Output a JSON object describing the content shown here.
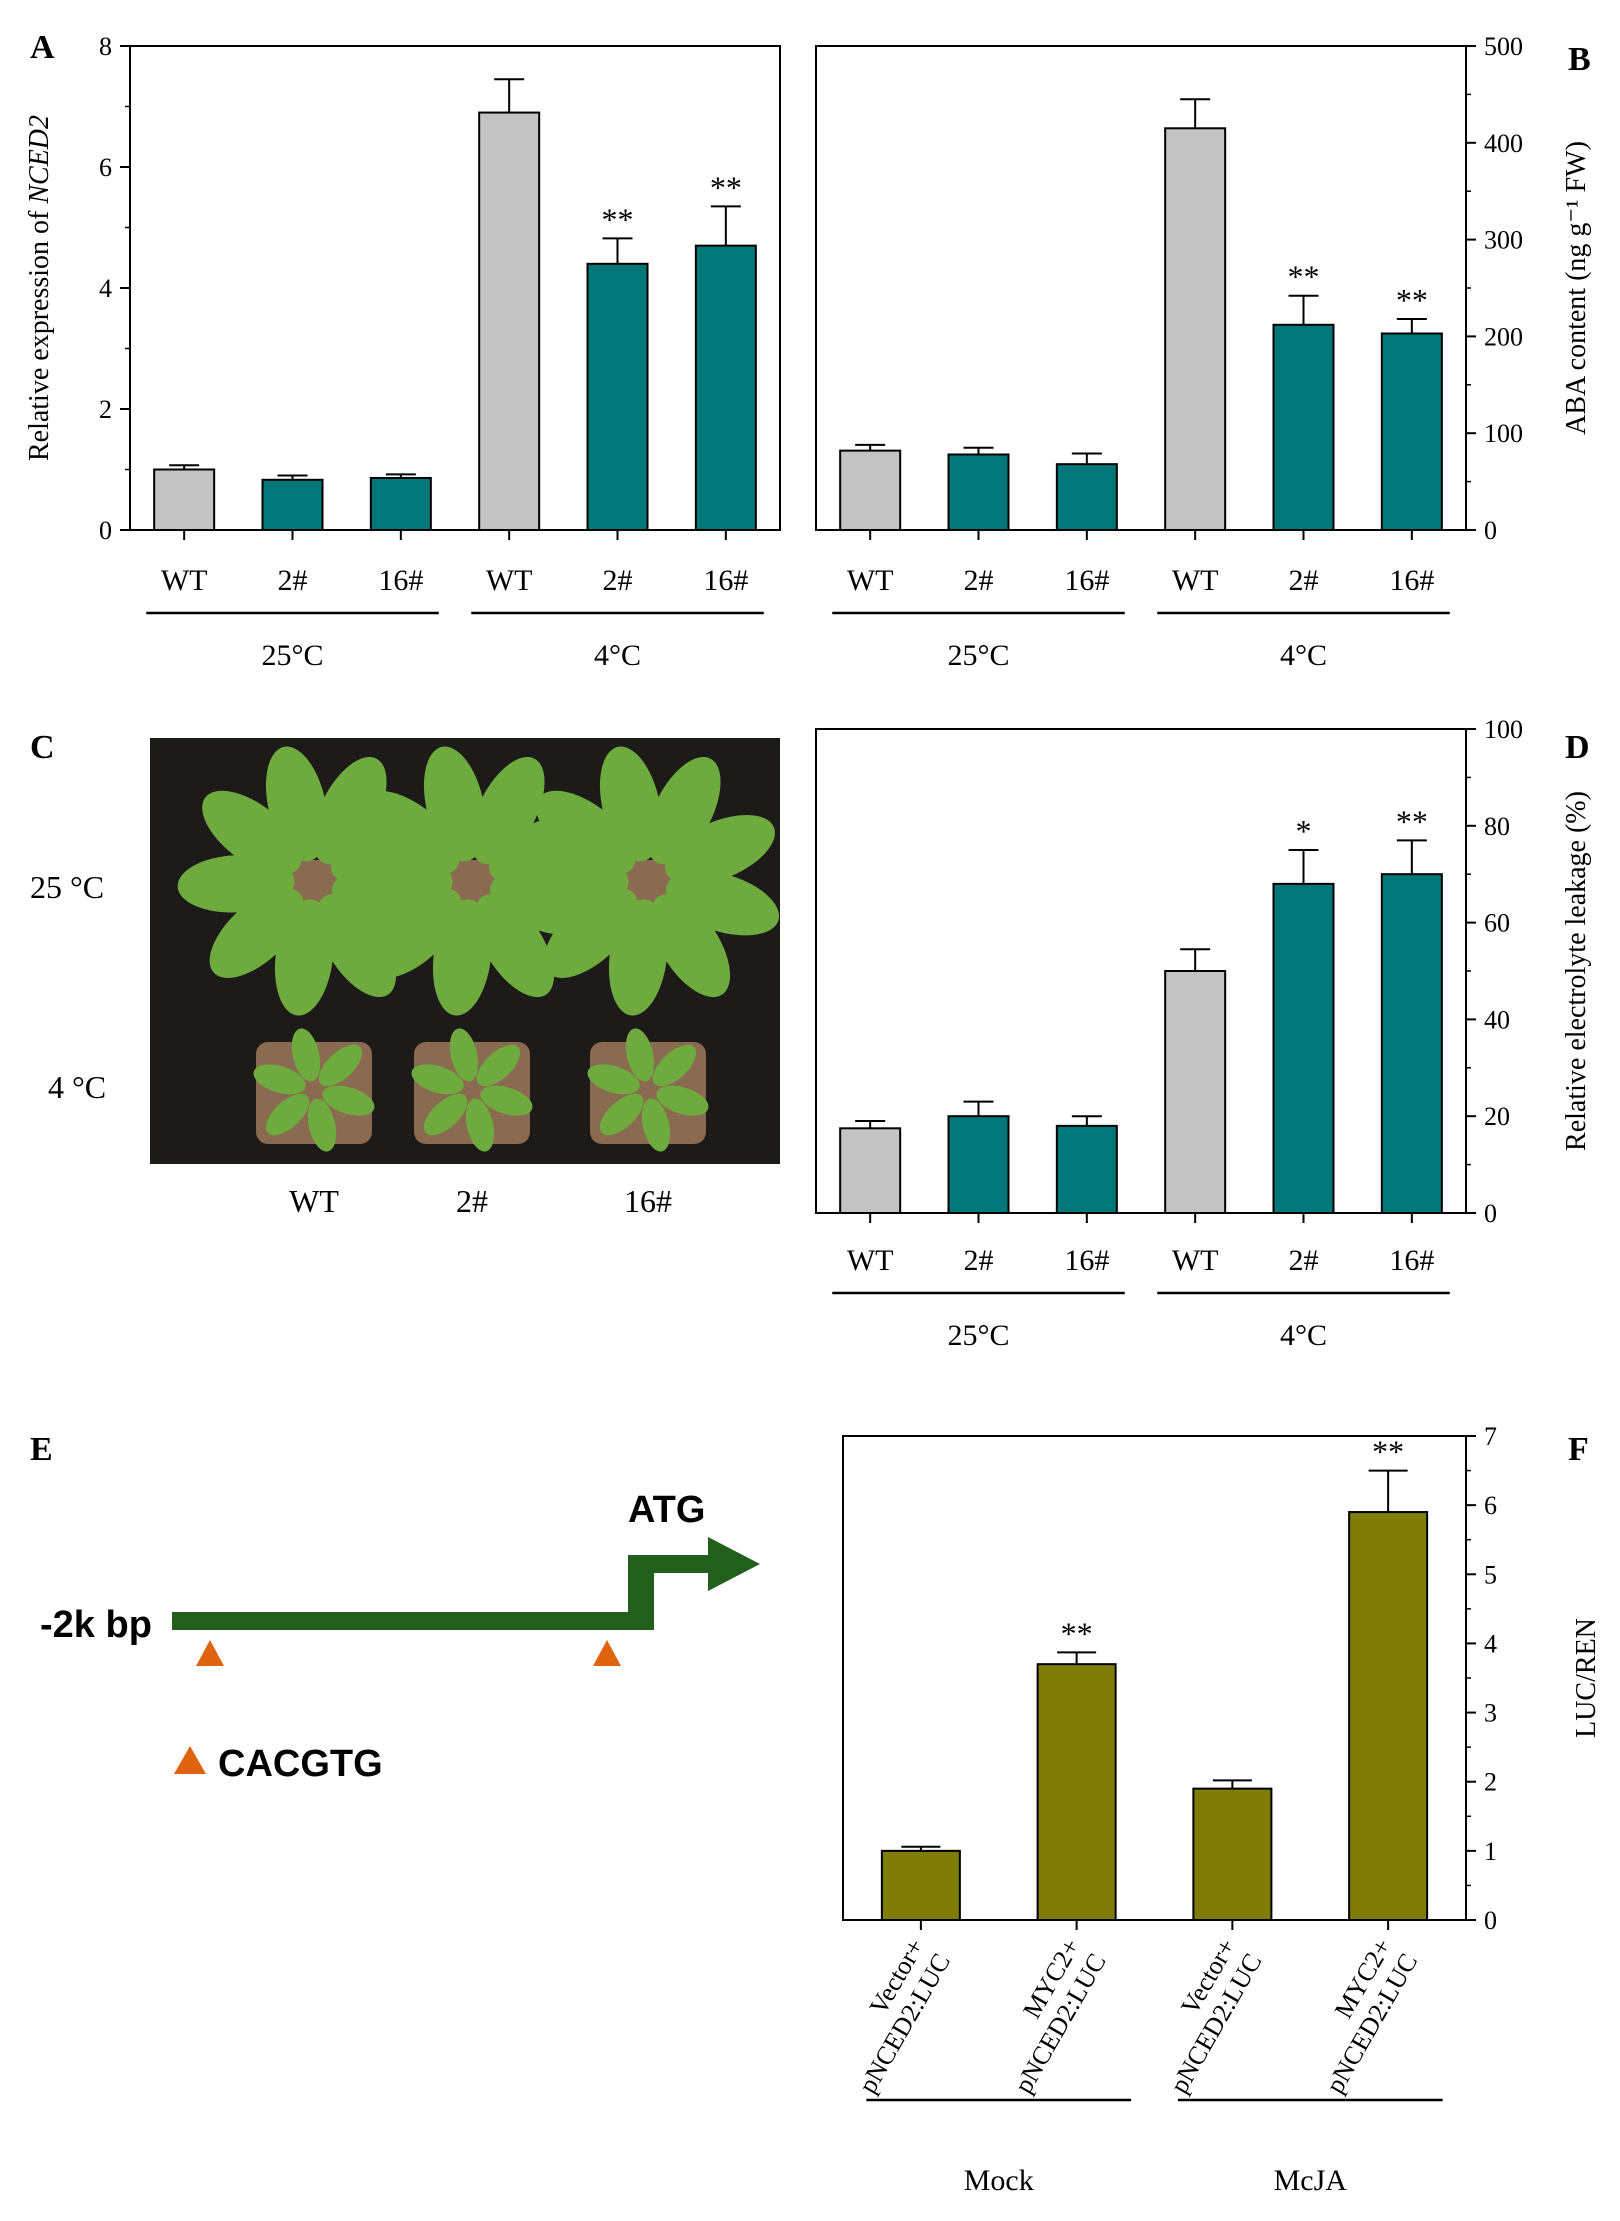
{
  "colors": {
    "wt": "#c3c3c3",
    "transgenic": "#00787a",
    "luc": "#7f7d06",
    "promoter": "#235f1c",
    "motif": "#e06410",
    "photo_bg": "#1c1b19",
    "leaf": "#6faa3e",
    "soil": "#8a6a50"
  },
  "panels": {
    "A": "A",
    "B": "B",
    "C": "C",
    "D": "D",
    "E": "E",
    "F": "F"
  },
  "chart_data": [
    {
      "id": "A",
      "type": "bar",
      "ylabel_prefix": "Relative expression of ",
      "ylabel_gene": "NCED2",
      "ylim": [
        0,
        8
      ],
      "yticks": [
        0,
        2,
        4,
        6,
        8
      ],
      "axis_side": "left",
      "categories": [
        "WT",
        "2#",
        "16#",
        "WT",
        "2#",
        "16#"
      ],
      "values": [
        1.0,
        0.83,
        0.86,
        6.9,
        4.4,
        4.7
      ],
      "errors": [
        0.07,
        0.07,
        0.06,
        0.55,
        0.42,
        0.65
      ],
      "significance": [
        "",
        "",
        "",
        "",
        "**",
        "**"
      ],
      "color_keys": [
        "wt",
        "transgenic",
        "transgenic",
        "wt",
        "transgenic",
        "transgenic"
      ],
      "groups": [
        {
          "label": "25°C",
          "span": [
            0,
            2
          ]
        },
        {
          "label": "4°C",
          "span": [
            3,
            5
          ]
        }
      ]
    },
    {
      "id": "B",
      "type": "bar",
      "ylabel": "ABA content (ng g⁻¹ FW)",
      "ylim": [
        0,
        500
      ],
      "yticks": [
        0,
        100,
        200,
        300,
        400,
        500
      ],
      "axis_side": "right",
      "categories": [
        "WT",
        "2#",
        "16#",
        "WT",
        "2#",
        "16#"
      ],
      "values": [
        82,
        78,
        68,
        415,
        212,
        203
      ],
      "errors": [
        6,
        7,
        11,
        30,
        30,
        15
      ],
      "significance": [
        "",
        "",
        "",
        "",
        "**",
        "**"
      ],
      "color_keys": [
        "wt",
        "transgenic",
        "transgenic",
        "wt",
        "transgenic",
        "transgenic"
      ],
      "groups": [
        {
          "label": "25°C",
          "span": [
            0,
            2
          ]
        },
        {
          "label": "4°C",
          "span": [
            3,
            5
          ]
        }
      ]
    },
    {
      "id": "D",
      "type": "bar",
      "ylabel": "Relative electrolyte leakage (%)",
      "ylim": [
        0,
        100
      ],
      "yticks": [
        0,
        20,
        40,
        60,
        80,
        100
      ],
      "axis_side": "right",
      "categories": [
        "WT",
        "2#",
        "16#",
        "WT",
        "2#",
        "16#"
      ],
      "values": [
        17.5,
        20,
        18,
        50,
        68,
        70
      ],
      "errors": [
        1.5,
        3,
        2,
        4.5,
        7,
        7
      ],
      "significance": [
        "",
        "",
        "",
        "",
        "*",
        "**"
      ],
      "color_keys": [
        "wt",
        "transgenic",
        "transgenic",
        "wt",
        "transgenic",
        "transgenic"
      ],
      "groups": [
        {
          "label": "25°C",
          "span": [
            0,
            2
          ]
        },
        {
          "label": "4°C",
          "span": [
            3,
            5
          ]
        }
      ]
    },
    {
      "id": "F",
      "type": "bar",
      "ylabel": "LUC/REN",
      "ylim": [
        0,
        7
      ],
      "yticks": [
        0,
        1,
        2,
        3,
        4,
        5,
        6,
        7
      ],
      "axis_side": "right",
      "categories": [
        [
          "Vector+",
          "pNCED2:LUC"
        ],
        [
          "MYC2+",
          "pNCED2:LUC"
        ],
        [
          "Vector+",
          "pNCED2:LUC"
        ],
        [
          "MYC2+",
          "pNCED2:LUC"
        ]
      ],
      "values": [
        1.0,
        3.7,
        1.9,
        5.9
      ],
      "errors": [
        0.06,
        0.17,
        0.12,
        0.6
      ],
      "significance": [
        "",
        "**",
        "",
        "**"
      ],
      "color_keys": [
        "luc",
        "luc",
        "luc",
        "luc"
      ],
      "groups": [
        {
          "label": "Mock",
          "span": [
            0,
            1
          ]
        },
        {
          "label": "McJA",
          "span": [
            2,
            3
          ]
        }
      ]
    }
  ],
  "photo": {
    "row_labels": [
      "25 °C",
      "4 °C"
    ],
    "col_labels": [
      "WT",
      "2#",
      "16#"
    ]
  },
  "promoter": {
    "start_label": "-2k bp",
    "atg_label": "ATG",
    "motif_label": "CACGTG"
  }
}
